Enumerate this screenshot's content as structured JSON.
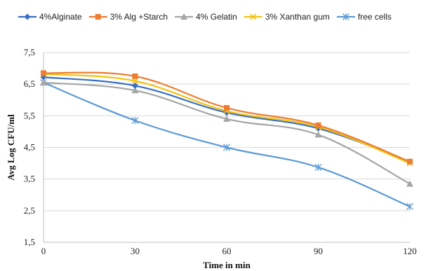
{
  "chart_data": {
    "type": "line",
    "title": "",
    "xlabel": "Time in min",
    "ylabel": "Avg Log CFU/ml",
    "x": [
      0,
      30,
      60,
      90,
      120
    ],
    "x_tick_labels": [
      "0",
      "30",
      "60",
      "90",
      "120"
    ],
    "y_tick_labels": [
      "1,5",
      "2,5",
      "3,5",
      "4,5",
      "5,5",
      "6,5",
      "7,5"
    ],
    "y_ticks": [
      1.5,
      2.5,
      3.5,
      4.5,
      5.5,
      6.5,
      7.5
    ],
    "ylim": [
      1.5,
      7.5
    ],
    "xlim": [
      0,
      120
    ],
    "grid": "horizontal",
    "legend_position": "top",
    "smooth": true,
    "series": [
      {
        "name": "4%Alginate",
        "color": "#3a6fc4",
        "marker": "diamond",
        "values": [
          6.72,
          6.45,
          5.6,
          5.1,
          4.05
        ]
      },
      {
        "name": "3% Alg +Starch",
        "color": "#ed7d31",
        "marker": "square",
        "values": [
          6.85,
          6.75,
          5.75,
          5.2,
          4.05
        ]
      },
      {
        "name": "4% Gelatin",
        "color": "#a5a5a5",
        "marker": "triangle",
        "values": [
          6.55,
          6.3,
          5.4,
          4.9,
          3.35
        ]
      },
      {
        "name": "3% Xanthan gum",
        "color": "#f2c313",
        "marker": "x",
        "values": [
          6.82,
          6.6,
          5.65,
          5.15,
          4.0
        ]
      },
      {
        "name": "free cells",
        "color": "#5b9bd5",
        "marker": "star",
        "values": [
          6.55,
          5.35,
          4.5,
          3.87,
          2.63
        ]
      }
    ]
  }
}
